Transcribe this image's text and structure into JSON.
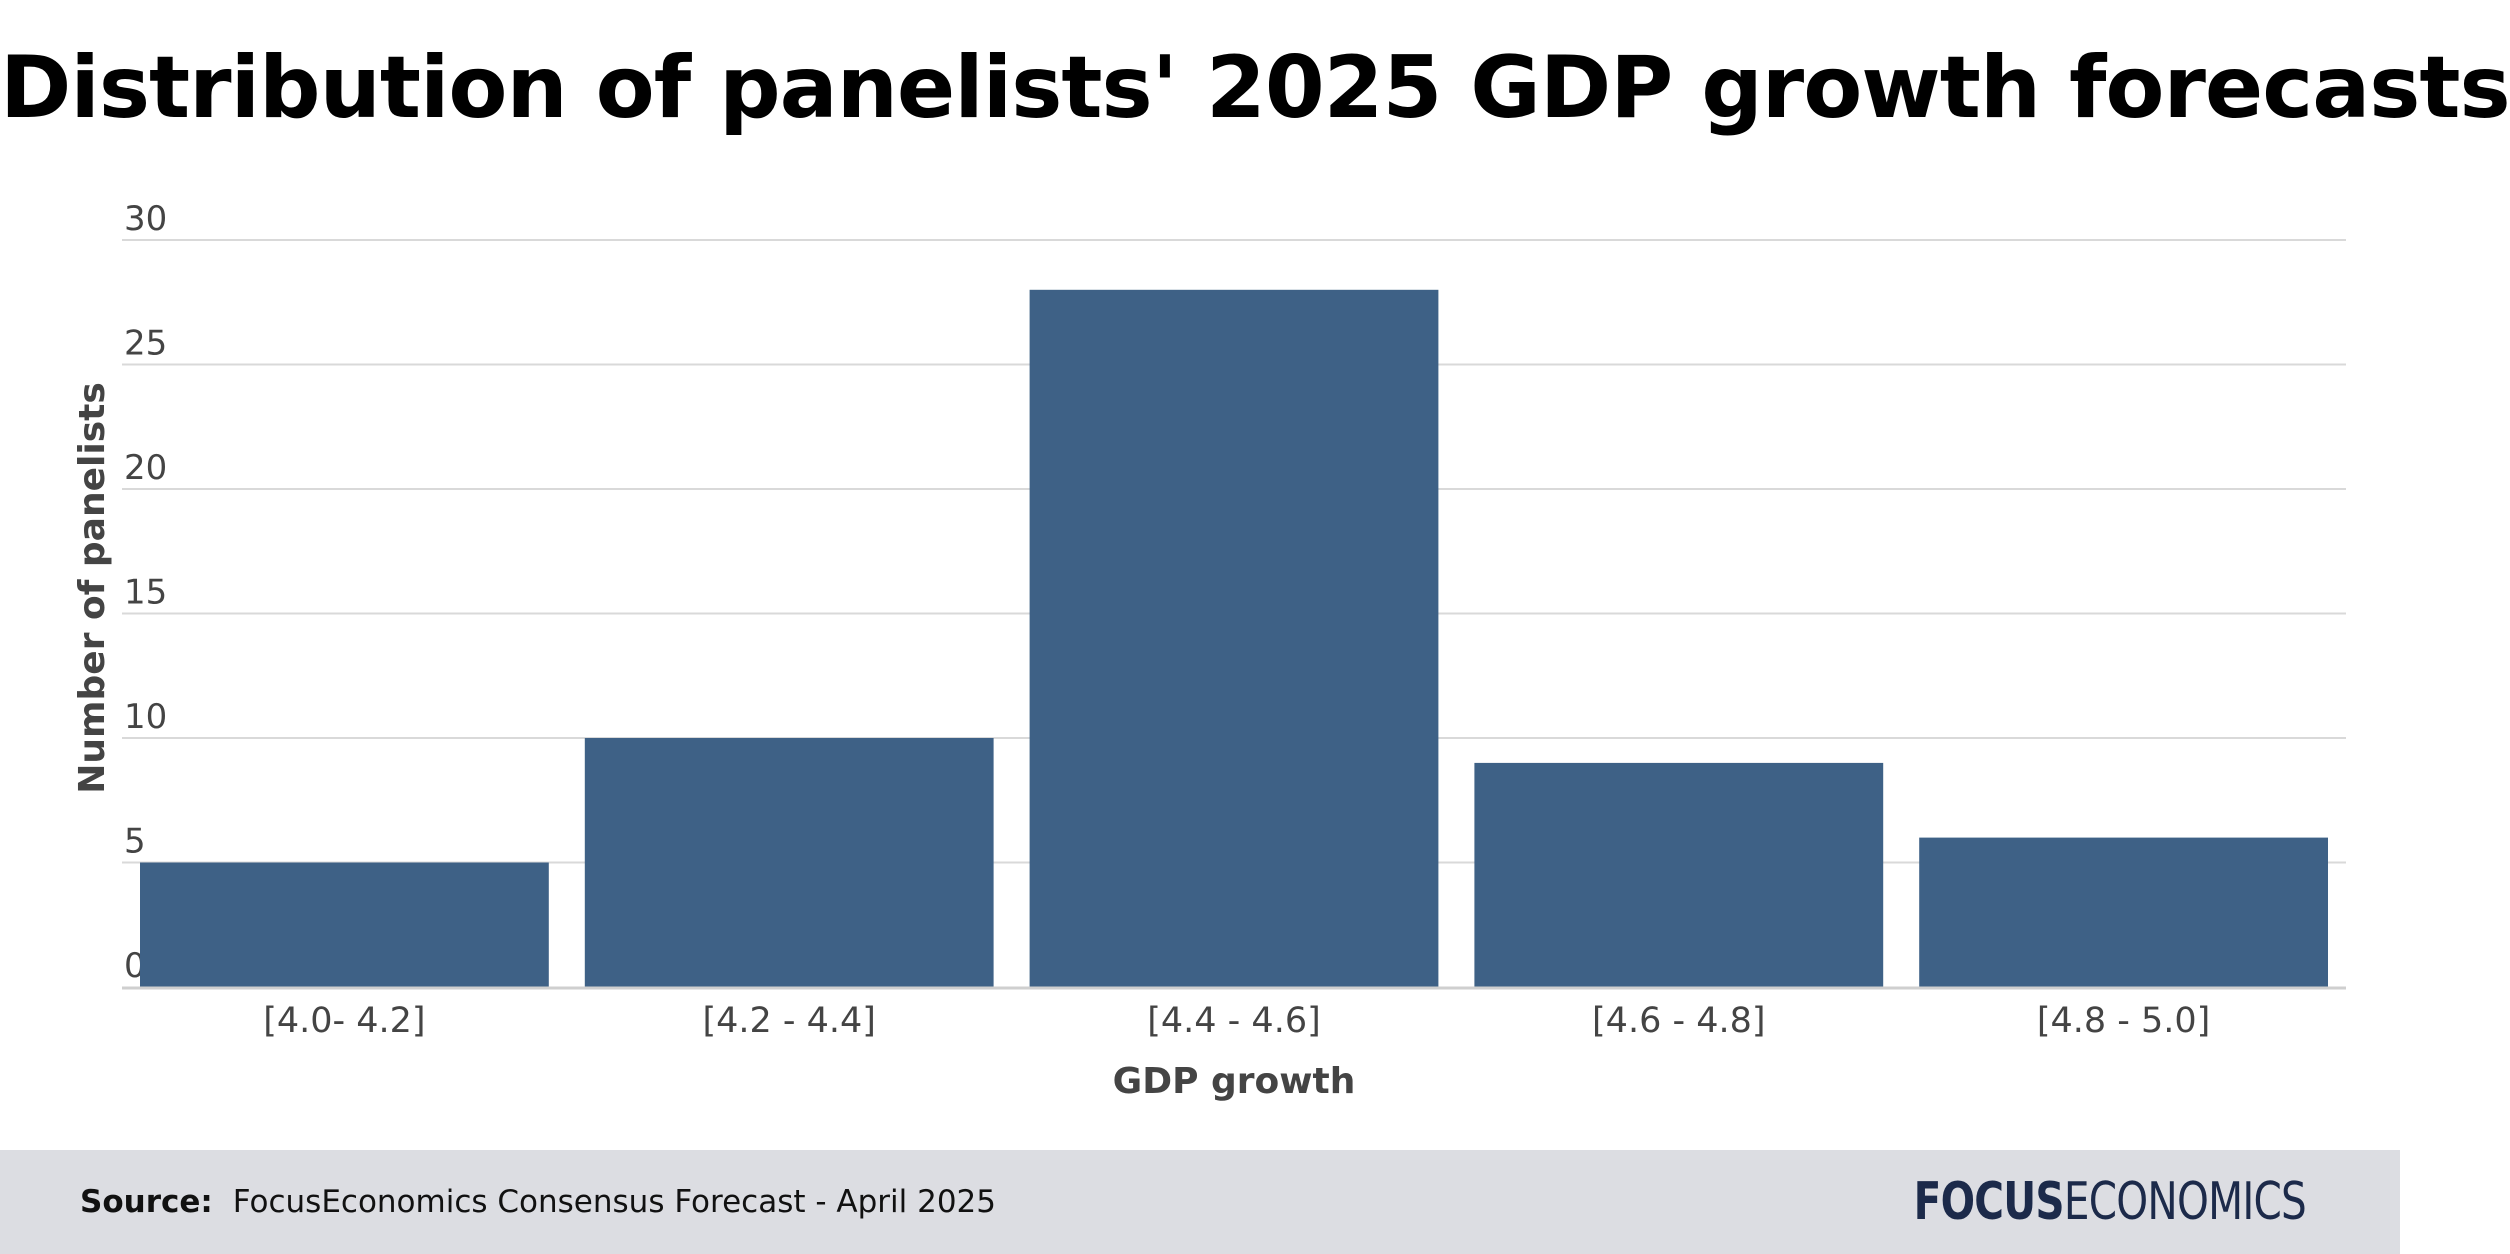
{
  "title": "Distribution of panelists' 2025 GDP growth forecasts",
  "footer": {
    "source_label": "Source:",
    "source_text": "FocusEconomics Consensus Forecast - April 2025",
    "logo_bold": "FOCUS",
    "logo_light": "ECONOMICS"
  },
  "colors": {
    "bar": "#3e6186",
    "grid": "#d9d9d9",
    "axis_text": "#444444",
    "footer_bg": "#dcdde2",
    "logo": "#1c2a4a"
  },
  "chart_data": {
    "type": "bar",
    "categories": [
      "[4.0- 4.2]",
      "[4.2 - 4.4]",
      "[4.4 - 4.6]",
      "[4.6 - 4.8]",
      "[4.8 - 5.0]"
    ],
    "values": [
      5,
      10,
      28,
      9,
      6
    ],
    "title": "Distribution of panelists' 2025 GDP growth forecasts",
    "xlabel": "GDP growth",
    "ylabel": "Number of panelists",
    "ylim": [
      0,
      30
    ],
    "yticks": [
      0,
      5,
      10,
      15,
      20,
      25,
      30
    ],
    "grid": true,
    "legend": "none"
  }
}
